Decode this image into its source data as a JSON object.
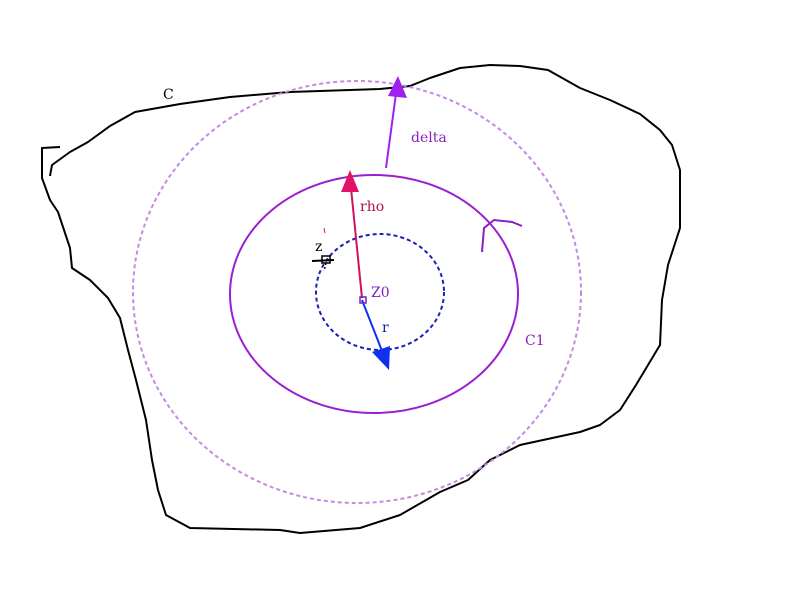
{
  "labels": {
    "contour": "C",
    "circle": "C1",
    "rho": "rho",
    "delta": "delta",
    "center": "Z0",
    "radius": "r",
    "point": "z"
  },
  "colors": {
    "contour": "#000000",
    "circle_c1": "#9a1fd0",
    "outer_dashed": "#c48be0",
    "inner_dashed": "#1a1fb8",
    "rho_arrow": "#d0105e",
    "delta_arrow": "#a020f0",
    "r_arrow": "#1030f0",
    "center_point": "#7a20c0",
    "label_contour": "#000000",
    "label_c1": "#8a1fc0",
    "label_rho": "#b01050",
    "label_delta": "#8a1fc0",
    "label_center": "#7a20c0",
    "label_r": "#1020a0",
    "label_point": "#000000"
  }
}
